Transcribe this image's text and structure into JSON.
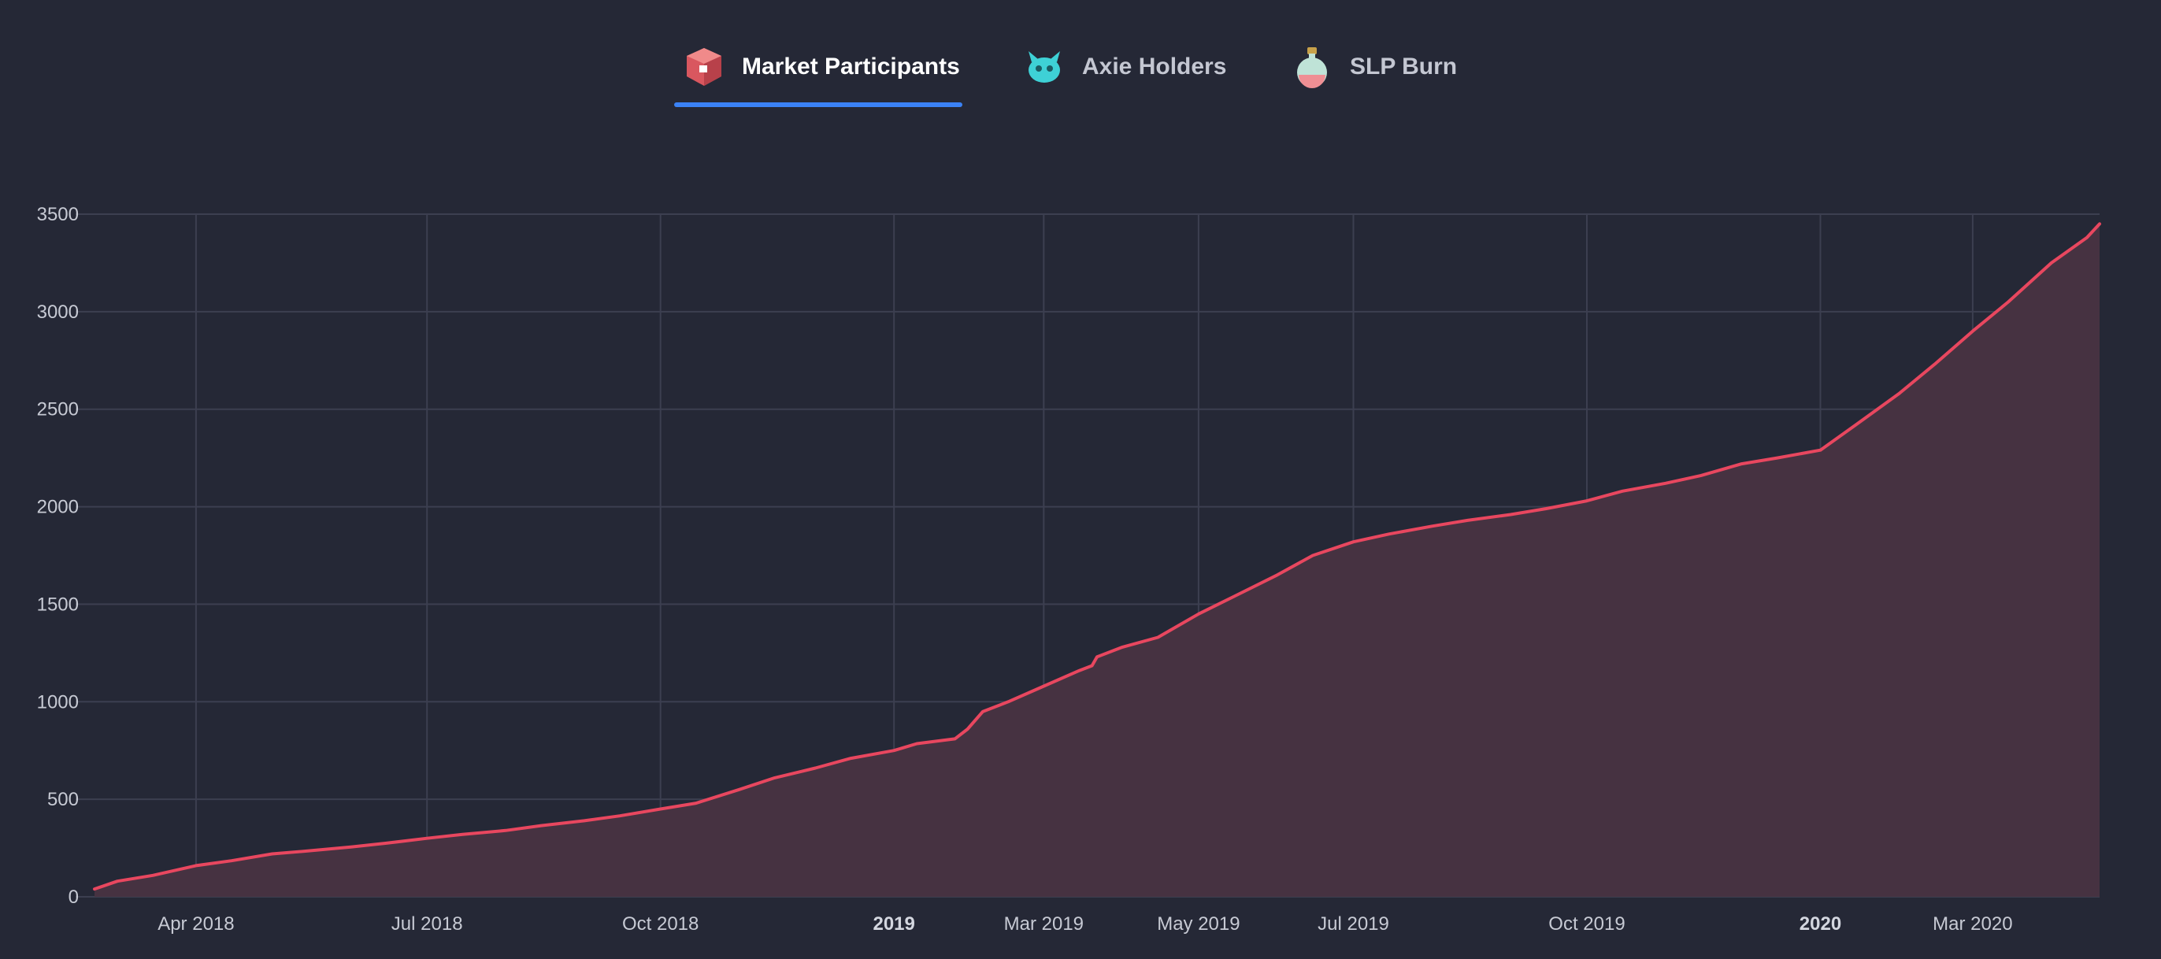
{
  "tabs": [
    {
      "label": "Market Participants",
      "icon": "crate-icon",
      "active": true
    },
    {
      "label": "Axie Holders",
      "icon": "axie-icon",
      "active": false
    },
    {
      "label": "SLP Burn",
      "icon": "potion-icon",
      "active": false
    }
  ],
  "colors": {
    "line": "#e8475f",
    "area": "#463241",
    "grid": "#3c3f50",
    "background": "#252836",
    "tab_active_underline": "#3b82f6"
  },
  "chart_data": {
    "type": "area",
    "title": "",
    "xlabel": "",
    "ylabel": "",
    "ylim": [
      0,
      3500
    ],
    "yticks": [
      0,
      500,
      1000,
      1500,
      2000,
      2500,
      3000,
      3500
    ],
    "xlim": [
      "2018-02-20",
      "2020-04-20"
    ],
    "xticks": [
      {
        "date": "2018-04-01",
        "label": "Apr 2018",
        "major": false
      },
      {
        "date": "2018-07-01",
        "label": "Jul 2018",
        "major": false
      },
      {
        "date": "2018-10-01",
        "label": "Oct 2018",
        "major": false
      },
      {
        "date": "2019-01-01",
        "label": "2019",
        "major": true
      },
      {
        "date": "2019-03-01",
        "label": "Mar 2019",
        "major": false
      },
      {
        "date": "2019-05-01",
        "label": "May 2019",
        "major": false
      },
      {
        "date": "2019-07-01",
        "label": "Jul 2019",
        "major": false
      },
      {
        "date": "2019-10-01",
        "label": "Oct 2019",
        "major": false
      },
      {
        "date": "2020-01-01",
        "label": "2020",
        "major": true
      },
      {
        "date": "2020-03-01",
        "label": "Mar 2020",
        "major": false
      }
    ],
    "grid": true,
    "legend": "none",
    "series": [
      {
        "points": [
          [
            "2018-02-20",
            40
          ],
          [
            "2018-03-01",
            80
          ],
          [
            "2018-03-15",
            110
          ],
          [
            "2018-04-01",
            160
          ],
          [
            "2018-04-15",
            185
          ],
          [
            "2018-05-01",
            220
          ],
          [
            "2018-05-15",
            235
          ],
          [
            "2018-06-01",
            255
          ],
          [
            "2018-06-15",
            275
          ],
          [
            "2018-07-01",
            300
          ],
          [
            "2018-07-15",
            320
          ],
          [
            "2018-08-01",
            340
          ],
          [
            "2018-08-15",
            365
          ],
          [
            "2018-09-01",
            390
          ],
          [
            "2018-09-15",
            415
          ],
          [
            "2018-10-01",
            450
          ],
          [
            "2018-10-15",
            480
          ],
          [
            "2018-11-01",
            550
          ],
          [
            "2018-11-15",
            610
          ],
          [
            "2018-12-01",
            660
          ],
          [
            "2018-12-15",
            710
          ],
          [
            "2019-01-01",
            750
          ],
          [
            "2019-01-10",
            785
          ],
          [
            "2019-01-25",
            810
          ],
          [
            "2019-01-30",
            860
          ],
          [
            "2019-02-05",
            950
          ],
          [
            "2019-02-15",
            1000
          ],
          [
            "2019-03-01",
            1080
          ],
          [
            "2019-03-15",
            1160
          ],
          [
            "2019-03-20",
            1185
          ],
          [
            "2019-03-22",
            1230
          ],
          [
            "2019-04-01",
            1280
          ],
          [
            "2019-04-15",
            1330
          ],
          [
            "2019-05-01",
            1450
          ],
          [
            "2019-05-15",
            1540
          ],
          [
            "2019-06-01",
            1650
          ],
          [
            "2019-06-15",
            1750
          ],
          [
            "2019-07-01",
            1820
          ],
          [
            "2019-07-15",
            1860
          ],
          [
            "2019-08-01",
            1900
          ],
          [
            "2019-08-15",
            1930
          ],
          [
            "2019-09-01",
            1960
          ],
          [
            "2019-09-15",
            1990
          ],
          [
            "2019-10-01",
            2030
          ],
          [
            "2019-10-15",
            2080
          ],
          [
            "2019-11-01",
            2120
          ],
          [
            "2019-11-15",
            2160
          ],
          [
            "2019-12-01",
            2220
          ],
          [
            "2019-12-15",
            2250
          ],
          [
            "2020-01-01",
            2290
          ],
          [
            "2020-01-15",
            2420
          ],
          [
            "2020-02-01",
            2580
          ],
          [
            "2020-02-15",
            2730
          ],
          [
            "2020-03-01",
            2900
          ],
          [
            "2020-03-15",
            3050
          ],
          [
            "2020-04-01",
            3250
          ],
          [
            "2020-04-15",
            3380
          ],
          [
            "2020-04-20",
            3450
          ]
        ]
      }
    ]
  }
}
